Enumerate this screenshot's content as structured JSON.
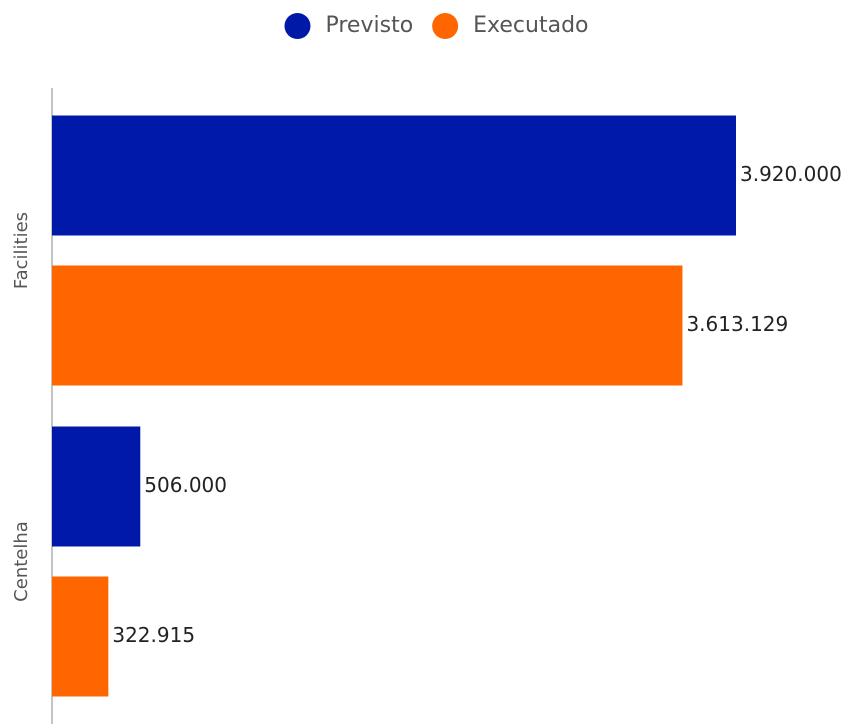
{
  "chart_data": {
    "type": "bar",
    "orientation": "horizontal",
    "categories": [
      "Facilities",
      "Centelha"
    ],
    "series": [
      {
        "name": "Previsto",
        "color": "#0019a8",
        "values": [
          3920000,
          506000
        ],
        "value_labels": [
          "3.920.000",
          "506.000"
        ]
      },
      {
        "name": "Executado",
        "color": "#ff6600",
        "values": [
          3613129,
          322915
        ],
        "value_labels": [
          "3.613.129",
          "322.915"
        ]
      }
    ],
    "legend": "top"
  }
}
